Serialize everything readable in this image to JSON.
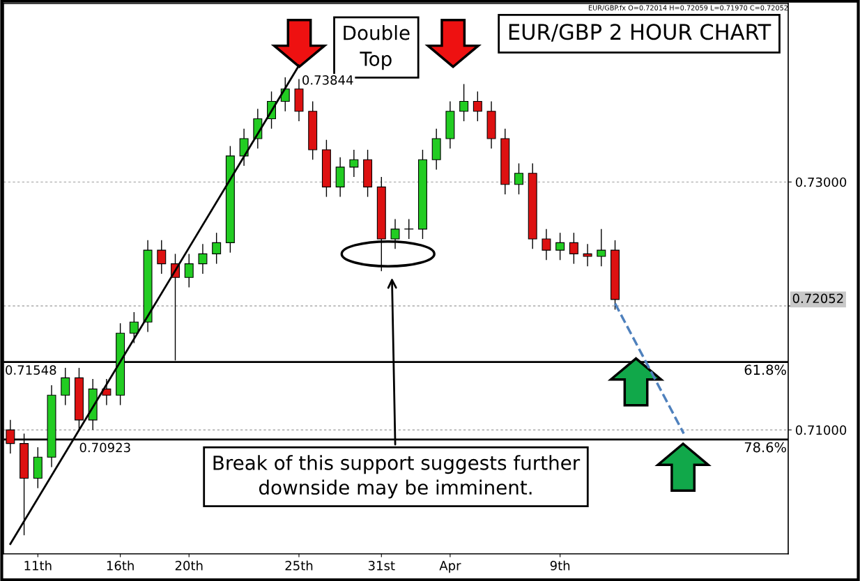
{
  "chart_data": {
    "type": "candlestick",
    "title": "EUR/GBP 2 HOUR CHART",
    "categories": [
      null,
      null,
      "11th",
      null,
      null,
      null,
      null,
      null,
      "16th",
      null,
      null,
      null,
      null,
      "20th",
      null,
      null,
      null,
      null,
      null,
      null,
      null,
      "25th",
      null,
      null,
      null,
      null,
      null,
      "31st",
      null,
      null,
      null,
      null,
      "Apr",
      null,
      null,
      null,
      null,
      null,
      null,
      null,
      "9th",
      null,
      null,
      null,
      null,
      null,
      null,
      null,
      null,
      null,
      null,
      null,
      null,
      null,
      null,
      null,
      null
    ],
    "series": [
      {
        "colors": [
          "#dd1111",
          "#dd1111",
          "#22cc22",
          "#22cc22",
          "#22cc22",
          "#dd1111",
          "#22cc22",
          "#dd1111",
          "#22cc22",
          "#22cc22",
          "#22cc22",
          "#dd1111",
          "#dd1111",
          "#22cc22",
          "#22cc22",
          "#22cc22",
          "#22cc22",
          "#22cc22",
          "#22cc22",
          "#22cc22",
          "#22cc22",
          "#dd1111",
          "#dd1111",
          "#dd1111",
          "#22cc22",
          "#22cc22",
          "#dd1111",
          "#dd1111",
          "#22cc22",
          "#22cc22",
          "#22cc22",
          "#22cc22",
          "#22cc22",
          "#22cc22",
          "#dd1111",
          "#dd1111",
          "#dd1111",
          "#22cc22",
          "#dd1111",
          "#dd1111",
          "#22cc22",
          "#dd1111",
          "#dd1111",
          "#22cc22",
          "#dd1111",
          null,
          null,
          null,
          null,
          null,
          null,
          null,
          null,
          null,
          null,
          null,
          null
        ],
        "ohlc": [
          [
            0.71,
            0.7108,
            0.7081,
            0.7089
          ],
          [
            0.7089,
            0.7097,
            0.7015,
            0.7061
          ],
          [
            0.7061,
            0.7086,
            0.7053,
            0.7078
          ],
          [
            0.7078,
            0.7136,
            0.707,
            0.7128
          ],
          [
            0.7128,
            0.715,
            0.712,
            0.7142
          ],
          [
            0.7142,
            0.715,
            0.71,
            0.7108
          ],
          [
            0.7108,
            0.7141,
            0.71,
            0.7133
          ],
          [
            0.7133,
            0.7141,
            0.712,
            0.7128
          ],
          [
            0.7128,
            0.7186,
            0.712,
            0.7178
          ],
          [
            0.7178,
            0.7195,
            0.717,
            0.7187
          ],
          [
            0.7187,
            0.7253,
            0.7179,
            0.7245
          ],
          [
            0.7245,
            0.7253,
            0.7226,
            0.7234
          ],
          [
            0.7234,
            0.7242,
            0.7156,
            0.7223
          ],
          [
            0.7223,
            0.7242,
            0.7215,
            0.7234
          ],
          [
            0.7234,
            0.725,
            0.7226,
            0.7242
          ],
          [
            0.7242,
            0.7259,
            0.7234,
            0.7251
          ],
          [
            0.7251,
            0.7329,
            0.7243,
            0.7321
          ],
          [
            0.7321,
            0.7343,
            0.7313,
            0.7335
          ],
          [
            0.7335,
            0.7359,
            0.7327,
            0.7351
          ],
          [
            0.7351,
            0.7373,
            0.7343,
            0.7365
          ],
          [
            0.7365,
            0.73844,
            0.7357,
            0.7375
          ],
          [
            0.7375,
            0.7383,
            0.7349,
            0.7357
          ],
          [
            0.7357,
            0.7365,
            0.7318,
            0.7326
          ],
          [
            0.7326,
            0.7334,
            0.7288,
            0.7296
          ],
          [
            0.7296,
            0.732,
            0.7288,
            0.7312
          ],
          [
            0.7312,
            0.7326,
            0.7304,
            0.7318
          ],
          [
            0.7318,
            0.7326,
            0.7288,
            0.7296
          ],
          [
            0.7296,
            0.7304,
            0.7228,
            0.7254
          ],
          [
            0.7254,
            0.727,
            0.7246,
            0.7262
          ],
          [
            0.7262,
            0.727,
            0.7254,
            0.7262
          ],
          [
            0.7262,
            0.7326,
            0.7254,
            0.7318
          ],
          [
            0.7318,
            0.7343,
            0.731,
            0.7335
          ],
          [
            0.7335,
            0.7365,
            0.7327,
            0.7357
          ],
          [
            0.7357,
            0.7379,
            0.7349,
            0.7365
          ],
          [
            0.7365,
            0.7373,
            0.7349,
            0.7357
          ],
          [
            0.7357,
            0.7365,
            0.7327,
            0.7335
          ],
          [
            0.7335,
            0.7343,
            0.729,
            0.7298
          ],
          [
            0.7298,
            0.7315,
            0.729,
            0.7307
          ],
          [
            0.7307,
            0.7315,
            0.7246,
            0.7254
          ],
          [
            0.7254,
            0.7262,
            0.7237,
            0.7245
          ],
          [
            0.7245,
            0.7259,
            0.7237,
            0.7251
          ],
          [
            0.7251,
            0.7259,
            0.7234,
            0.7242
          ],
          [
            0.7242,
            0.725,
            0.7232,
            0.724
          ],
          [
            0.724,
            0.7262,
            0.7232,
            0.7245
          ],
          [
            0.7245,
            0.7253,
            0.7197,
            0.72052
          ],
          null,
          null,
          null,
          null,
          null,
          null,
          null,
          null,
          null,
          null,
          null,
          null
        ]
      },
      {
        "type": "line",
        "color": "#000000",
        "line_style": "solid",
        "values": [
          0.7008,
          null,
          null,
          null,
          null,
          null,
          null,
          null,
          null,
          null,
          null,
          null,
          null,
          null,
          null,
          null,
          null,
          null,
          null,
          null,
          null,
          0.7394,
          null,
          null,
          null,
          null,
          null,
          null,
          null,
          null,
          null,
          null,
          null,
          null,
          null,
          null,
          null,
          null,
          null,
          null,
          null,
          null,
          null,
          null,
          null,
          null,
          null,
          null,
          null,
          null,
          null,
          null,
          null,
          null,
          null,
          null,
          null
        ]
      },
      {
        "type": "line",
        "color": "#4f81bd",
        "line_style": "dashed",
        "values": [
          null,
          null,
          null,
          null,
          null,
          null,
          null,
          null,
          null,
          null,
          null,
          null,
          null,
          null,
          null,
          null,
          null,
          null,
          null,
          null,
          null,
          null,
          null,
          null,
          null,
          null,
          null,
          null,
          null,
          null,
          null,
          null,
          null,
          null,
          null,
          null,
          null,
          null,
          null,
          null,
          null,
          null,
          null,
          null,
          0.7202,
          null,
          0.716,
          null,
          null,
          0.7097,
          null,
          null,
          null,
          null,
          null,
          null,
          null
        ]
      }
    ],
    "ylim": [
      0.7,
      0.7444
    ],
    "yticks": [
      {
        "value": 0.73,
        "label": "0.73000"
      },
      {
        "value": 0.72,
        "label": null
      },
      {
        "value": 0.71,
        "label": "0.71000"
      }
    ],
    "grid": "y",
    "legend": false,
    "ref_lines": [
      {
        "axis": "y",
        "value": 0.71548,
        "label": "0.71548",
        "color": "#000000",
        "line_style": "solid"
      },
      {
        "axis": "y",
        "value": 0.70923,
        "label": "0.70923",
        "color": "#000000",
        "line_style": "solid"
      }
    ],
    "annotations": [
      "Double Top",
      "Break of this support suggests further\ndownside may be imminent.",
      "0.73844",
      "61.8%",
      "78.6%",
      "0.72052",
      "EUR/GBP.fx O=0.72014 H=0.72059 L=0.71970 C=0.72052"
    ]
  }
}
